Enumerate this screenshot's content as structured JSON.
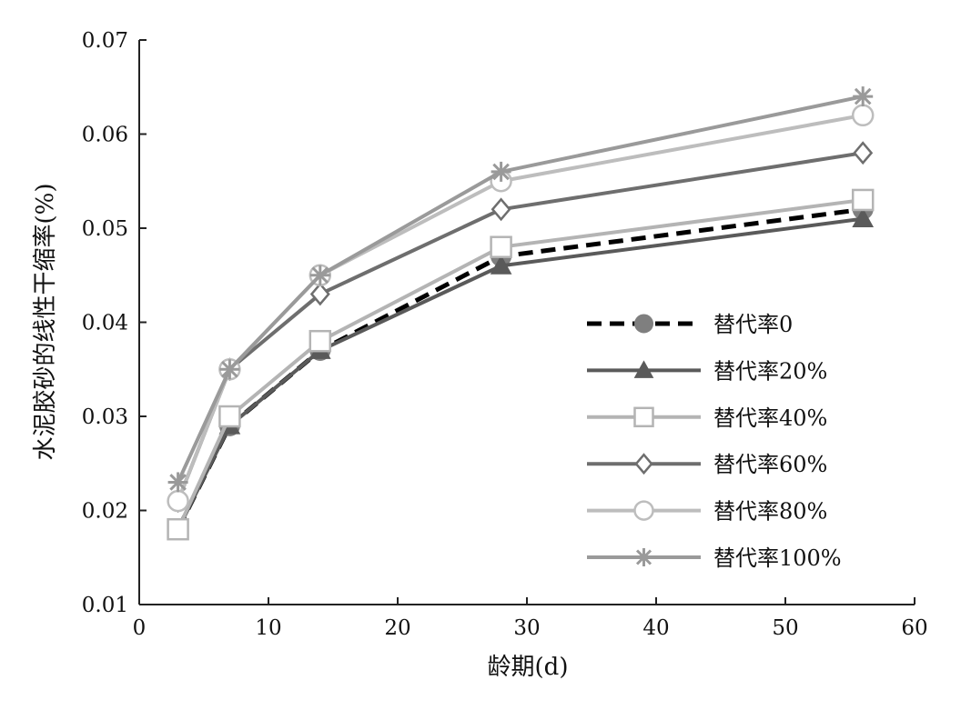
{
  "chart_data": {
    "type": "line",
    "title": "",
    "xlabel": "龄期(d)",
    "ylabel": "水泥胶砂的线性干缩率(%)",
    "xlim": [
      0,
      60
    ],
    "ylim": [
      0.01,
      0.07
    ],
    "x_ticks": [
      0,
      10,
      20,
      30,
      40,
      50,
      60
    ],
    "x_tick_labels": [
      "0",
      "10",
      "20",
      "30",
      "40",
      "50",
      "60"
    ],
    "y_ticks": [
      0.01,
      0.02,
      0.03,
      0.04,
      0.05,
      0.06,
      0.07
    ],
    "y_tick_labels": [
      "0.01",
      "0.02",
      "0.03",
      "0.04",
      "0.05",
      "0.06",
      "0.07"
    ],
    "grid": false,
    "legend_position": "right-lower",
    "x": [
      3,
      7,
      14,
      28,
      56
    ],
    "series": [
      {
        "name": "替代率0",
        "values": [
          0.018,
          0.029,
          0.037,
          0.047,
          0.052
        ],
        "marker": "circle-filled",
        "line_style": "dashed",
        "line_color": "#000000",
        "marker_color": "#7f7f7f"
      },
      {
        "name": "替代率20%",
        "values": [
          0.018,
          0.029,
          0.037,
          0.046,
          0.051
        ],
        "marker": "triangle-filled",
        "line_style": "solid",
        "line_color": "#5a5a5a",
        "marker_color": "#5a5a5a"
      },
      {
        "name": "替代率40%",
        "values": [
          0.018,
          0.03,
          0.038,
          0.048,
          0.053
        ],
        "marker": "square-open",
        "line_style": "solid",
        "line_color": "#b4b4b4",
        "marker_color": "#b4b4b4"
      },
      {
        "name": "替代率60%",
        "values": [
          0.021,
          0.035,
          0.043,
          0.052,
          0.058
        ],
        "marker": "diamond-open",
        "line_style": "solid",
        "line_color": "#6e6e6e",
        "marker_color": "#6e6e6e"
      },
      {
        "name": "替代率80%",
        "values": [
          0.021,
          0.035,
          0.045,
          0.055,
          0.062
        ],
        "marker": "circle-open",
        "line_style": "solid",
        "line_color": "#bdbdbd",
        "marker_color": "#bdbdbd"
      },
      {
        "name": "替代率100%",
        "values": [
          0.023,
          0.035,
          0.045,
          0.056,
          0.064
        ],
        "marker": "asterisk",
        "line_style": "solid",
        "line_color": "#9a9a9a",
        "marker_color": "#9a9a9a"
      }
    ]
  }
}
